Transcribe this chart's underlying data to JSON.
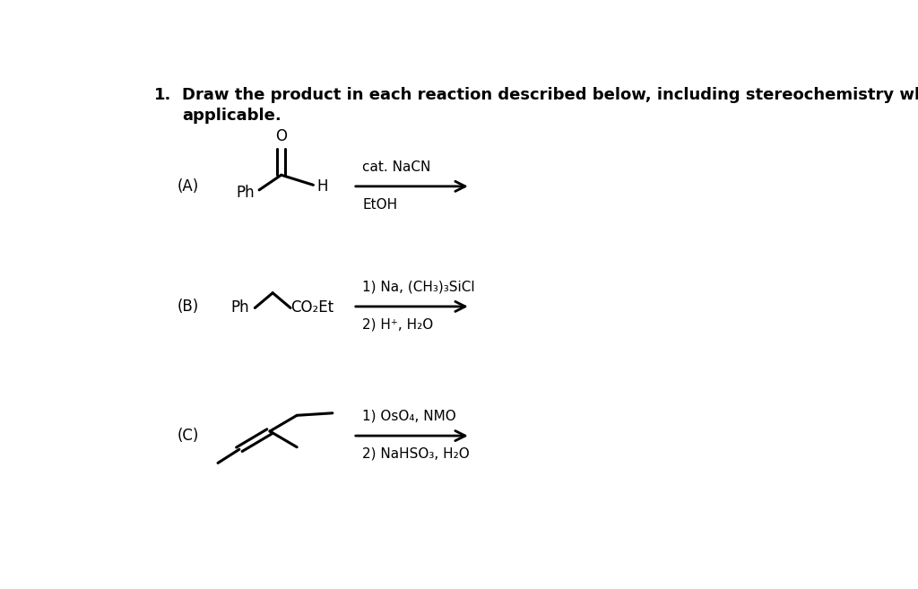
{
  "background_color": "#ffffff",
  "text_color": "#000000",
  "title_num": "1.",
  "title_line1": "Draw the product in each reaction described below, including stereochemistry when",
  "title_line2": "applicable.",
  "label_A": "(A)",
  "label_B": "(B)",
  "label_C": "(C)",
  "reagent_A_top": "cat. NaCN",
  "reagent_A_bot": "EtOH",
  "reagent_B_top": "1) Na, (CH₃)₃SiCl",
  "reagent_B_bot": "2) H⁺, H₂O",
  "reagent_C_top": "1) OsO₄, NMO",
  "reagent_C_bot": "2) NaHSO₃, H₂O",
  "arrow_lw": 2.0,
  "bond_lw": 2.2,
  "double_sep": 0.007,
  "fontsize_title": 13,
  "fontsize_label": 12,
  "fontsize_reagent": 11,
  "fontsize_mol": 12
}
